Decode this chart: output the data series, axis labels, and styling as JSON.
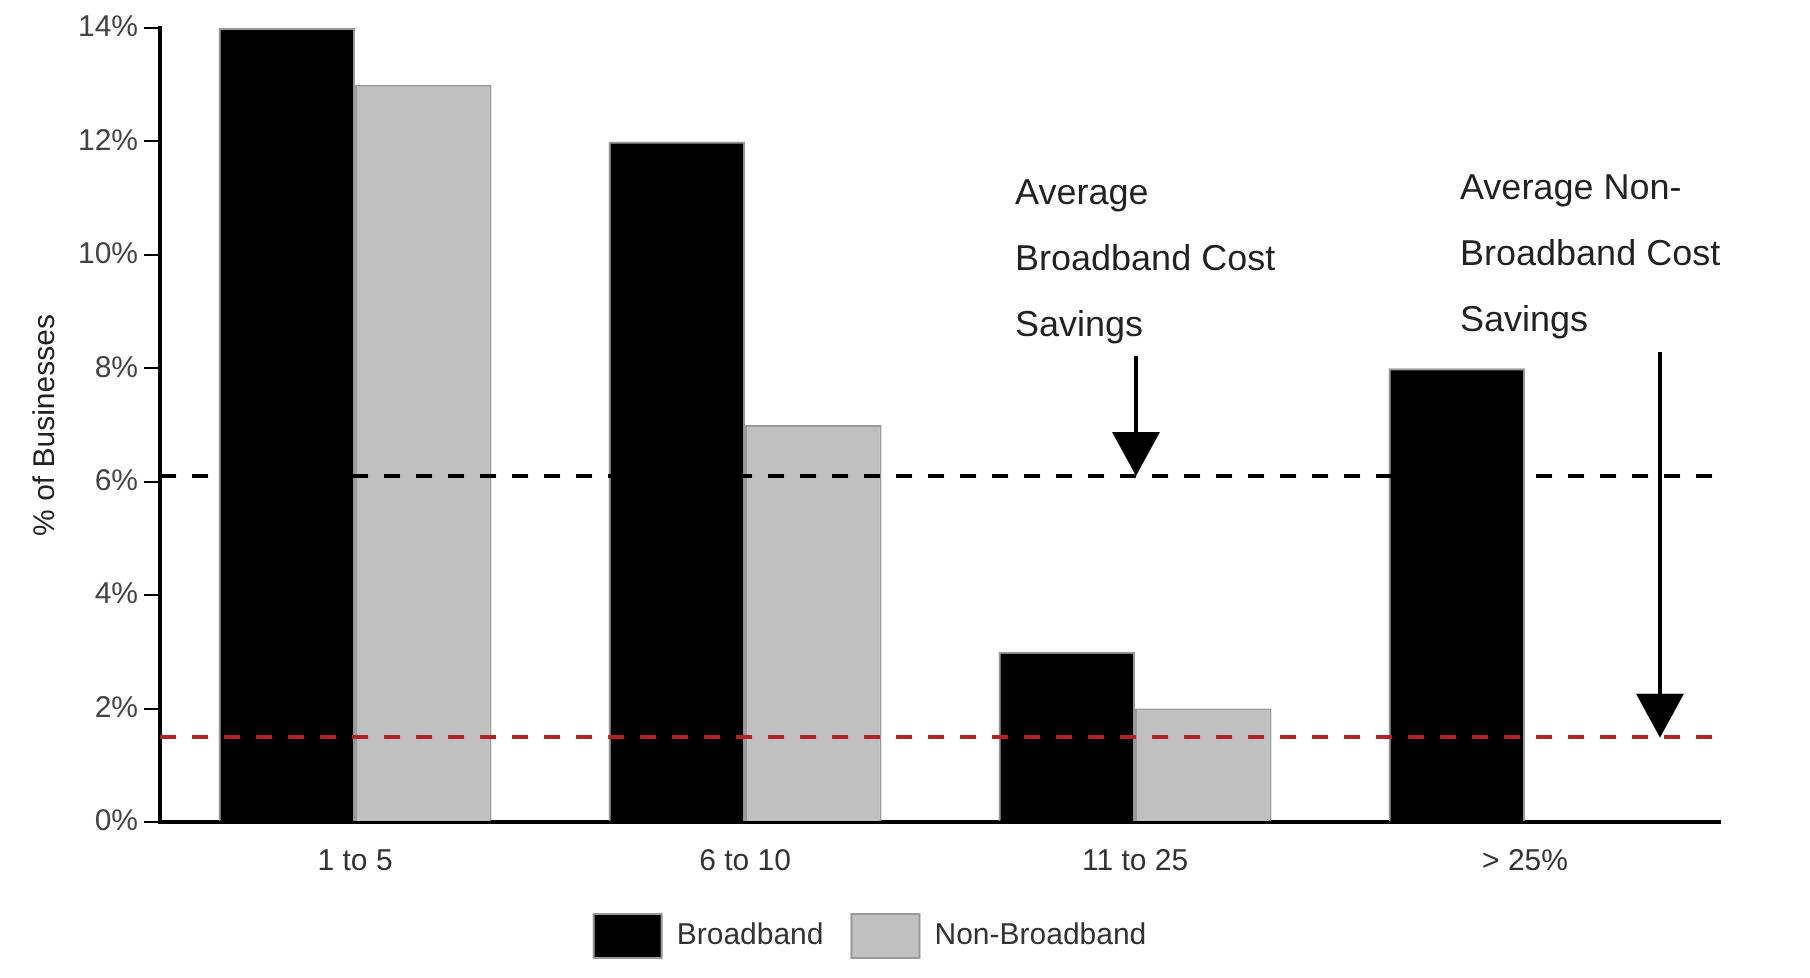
{
  "chart_data": {
    "type": "bar",
    "ylabel": "% of Businesses",
    "categories": [
      "1 to 5",
      "6 to 10",
      "11 to 25",
      "> 25%"
    ],
    "series": [
      {
        "name": "Broadband",
        "color": "#000000",
        "values": [
          14,
          12,
          3,
          8
        ]
      },
      {
        "name": "Non-Broadband",
        "color": "#c0c0c0",
        "values": [
          13,
          7,
          2,
          null
        ]
      }
    ],
    "ylim": [
      0,
      14
    ],
    "yticks": [
      {
        "value": 0,
        "label": "0%"
      },
      {
        "value": 2,
        "label": "2%"
      },
      {
        "value": 4,
        "label": "4%"
      },
      {
        "value": 6,
        "label": "6%"
      },
      {
        "value": 8,
        "label": "8%"
      },
      {
        "value": 10,
        "label": "10%"
      },
      {
        "value": 12,
        "label": "12%"
      },
      {
        "value": 14,
        "label": "14%"
      }
    ],
    "ref_lines": [
      {
        "axis": "y",
        "value": 6.1,
        "color": "#000000",
        "line_style": "dashed"
      },
      {
        "axis": "y",
        "value": 1.5,
        "color": "#b22222",
        "line_style": "dashed"
      }
    ],
    "annotations": [
      "Average Broadband Cost Savings",
      "Average Non-Broadband Cost Savings"
    ],
    "grid": false,
    "legend": "bottom"
  }
}
